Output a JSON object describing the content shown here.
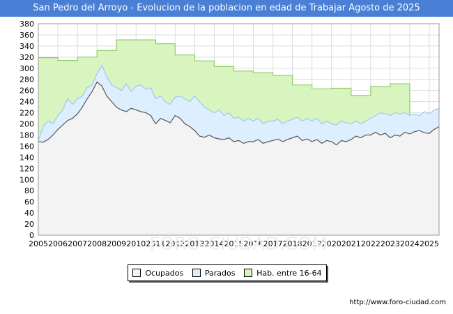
{
  "header": {
    "title": "San Pedro del Arroyo - Evolucion de la poblacion en edad de Trabajar Agosto de 2025"
  },
  "footer": {
    "source": "http://www.foro-ciudad.com"
  },
  "watermark": "FORO-CIUDAD.COM",
  "colors": {
    "ocupados_fill": "#f3f3f3",
    "ocupados_line": "#555555",
    "parados_fill": "#ddeeff",
    "parados_line": "#9cc8ee",
    "hab_fill": "#d8f5c0",
    "hab_line": "#90cc66",
    "title_bg": "#4a7fd6",
    "grid": "#dcdcdc"
  },
  "chart_data": {
    "type": "area",
    "title": "San Pedro del Arroyo - Evolucion de la poblacion en edad de Trabajar Agosto de 2025",
    "xlabel": "",
    "ylabel": "",
    "x_ticks": [
      "2005",
      "2006",
      "2007",
      "2008",
      "2009",
      "2010",
      "2011",
      "2012",
      "2013",
      "2014",
      "2015",
      "2016",
      "2017",
      "2018",
      "2019",
      "2020",
      "2021",
      "2022",
      "2023",
      "2024",
      "2025"
    ],
    "ylim": [
      0,
      380
    ],
    "y_ticks": [
      0,
      20,
      40,
      60,
      80,
      100,
      120,
      140,
      160,
      180,
      200,
      220,
      240,
      260,
      280,
      300,
      320,
      340,
      360,
      380
    ],
    "grid": true,
    "legend_position": "bottom",
    "series": [
      {
        "name": "Hab. entre 16-64",
        "step": true,
        "x": [
          2005,
          2006,
          2007,
          2008,
          2009,
          2010,
          2011,
          2012,
          2013,
          2014,
          2015,
          2016,
          2017,
          2018,
          2019,
          2020,
          2021,
          2022,
          2023,
          2024
        ],
        "values": [
          319,
          314,
          320,
          332,
          351,
          351,
          344,
          324,
          313,
          303,
          295,
          292,
          287,
          270,
          263,
          264,
          251,
          267,
          272,
          null
        ]
      },
      {
        "name": "Parados",
        "x": [
          2005,
          2005.25,
          2005.5,
          2005.75,
          2006,
          2006.25,
          2006.5,
          2006.75,
          2007,
          2007.25,
          2007.5,
          2007.75,
          2008,
          2008.25,
          2008.5,
          2008.75,
          2009,
          2009.25,
          2009.5,
          2009.75,
          2010,
          2010.25,
          2010.5,
          2010.75,
          2011,
          2011.25,
          2011.5,
          2011.75,
          2012,
          2012.25,
          2012.5,
          2012.75,
          2013,
          2013.25,
          2013.5,
          2013.75,
          2014,
          2014.25,
          2014.5,
          2014.75,
          2015,
          2015.25,
          2015.5,
          2015.75,
          2016,
          2016.25,
          2016.5,
          2016.75,
          2017,
          2017.25,
          2017.5,
          2017.75,
          2018,
          2018.25,
          2018.5,
          2018.75,
          2019,
          2019.25,
          2019.5,
          2019.75,
          2020,
          2020.25,
          2020.5,
          2020.75,
          2021,
          2021.25,
          2021.5,
          2021.75,
          2022,
          2022.25,
          2022.5,
          2022.75,
          2023,
          2023.25,
          2023.5,
          2023.75,
          2024,
          2024.25,
          2024.5,
          2024.75,
          2025,
          2025.25,
          2025.5
        ],
        "values": [
          170,
          195,
          205,
          200,
          215,
          225,
          245,
          235,
          245,
          250,
          265,
          270,
          290,
          305,
          285,
          270,
          265,
          260,
          272,
          258,
          268,
          270,
          262,
          265,
          245,
          250,
          240,
          235,
          248,
          250,
          245,
          240,
          250,
          240,
          230,
          225,
          220,
          225,
          215,
          220,
          210,
          212,
          205,
          210,
          205,
          210,
          200,
          205,
          205,
          208,
          200,
          205,
          208,
          212,
          205,
          210,
          205,
          210,
          200,
          205,
          200,
          198,
          205,
          202,
          200,
          205,
          200,
          205,
          210,
          215,
          220,
          218,
          215,
          220,
          218,
          220,
          215,
          218,
          215,
          222,
          218,
          225,
          228
        ]
      },
      {
        "name": "Ocupados",
        "x": [
          2005,
          2005.25,
          2005.5,
          2005.75,
          2006,
          2006.25,
          2006.5,
          2006.75,
          2007,
          2007.25,
          2007.5,
          2007.75,
          2008,
          2008.25,
          2008.5,
          2008.75,
          2009,
          2009.25,
          2009.5,
          2009.75,
          2010,
          2010.25,
          2010.5,
          2010.75,
          2011,
          2011.25,
          2011.5,
          2011.75,
          2012,
          2012.25,
          2012.5,
          2012.75,
          2013,
          2013.25,
          2013.5,
          2013.75,
          2014,
          2014.25,
          2014.5,
          2014.75,
          2015,
          2015.25,
          2015.5,
          2015.75,
          2016,
          2016.25,
          2016.5,
          2016.75,
          2017,
          2017.25,
          2017.5,
          2017.75,
          2018,
          2018.25,
          2018.5,
          2018.75,
          2019,
          2019.25,
          2019.5,
          2019.75,
          2020,
          2020.25,
          2020.5,
          2020.75,
          2021,
          2021.25,
          2021.5,
          2021.75,
          2022,
          2022.25,
          2022.5,
          2022.75,
          2023,
          2023.25,
          2023.5,
          2023.75,
          2024,
          2024.25,
          2024.5,
          2024.75,
          2025,
          2025.25,
          2025.5
        ],
        "values": [
          168,
          167,
          172,
          180,
          190,
          198,
          206,
          210,
          218,
          230,
          245,
          258,
          275,
          268,
          250,
          240,
          230,
          225,
          222,
          228,
          225,
          222,
          220,
          215,
          200,
          210,
          206,
          202,
          215,
          210,
          200,
          195,
          188,
          178,
          176,
          180,
          175,
          173,
          172,
          175,
          168,
          170,
          165,
          168,
          168,
          172,
          165,
          168,
          170,
          173,
          168,
          172,
          175,
          178,
          170,
          173,
          168,
          172,
          165,
          170,
          168,
          162,
          170,
          168,
          172,
          178,
          175,
          180,
          180,
          185,
          180,
          183,
          175,
          180,
          178,
          185,
          182,
          186,
          188,
          184,
          183,
          190,
          195
        ]
      }
    ]
  },
  "legend": {
    "items": [
      {
        "label": "Ocupados"
      },
      {
        "label": "Parados"
      },
      {
        "label": "Hab. entre 16-64"
      }
    ]
  }
}
